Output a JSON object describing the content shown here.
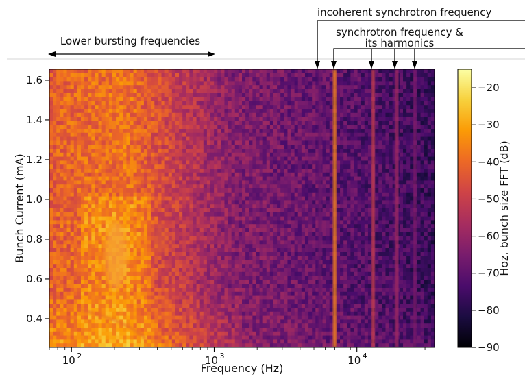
{
  "chart_data": {
    "type": "heatmap",
    "xlabel": "Frequency (Hz)",
    "ylabel": "Bunch Current (mA)",
    "x_scale": "log",
    "xlim": [
      70,
      35000
    ],
    "ylim": [
      0.255,
      1.655
    ],
    "x_ticks": [
      {
        "value": 100,
        "base": "10",
        "exp": "2"
      },
      {
        "value": 1000,
        "base": "10",
        "exp": "3"
      },
      {
        "value": 10000,
        "base": "10",
        "exp": "4"
      }
    ],
    "y_ticks": [
      {
        "value": 0.4,
        "label": "0.4"
      },
      {
        "value": 0.6,
        "label": "0.6"
      },
      {
        "value": 0.8,
        "label": "0.8"
      },
      {
        "value": 1.0,
        "label": "1.0"
      },
      {
        "value": 1.2,
        "label": "1.2"
      },
      {
        "value": 1.4,
        "label": "1.4"
      },
      {
        "value": 1.6,
        "label": "1.6"
      }
    ],
    "colorbar": {
      "label": "Hoz. bunch size FFT (dB)",
      "range": [
        -90,
        -15
      ],
      "ticks": [
        {
          "value": -20,
          "label": "−20"
        },
        {
          "value": -30,
          "label": "−30"
        },
        {
          "value": -40,
          "label": "−40"
        },
        {
          "value": -50,
          "label": "−50"
        },
        {
          "value": -60,
          "label": "−60"
        },
        {
          "value": -70,
          "label": "−70"
        },
        {
          "value": -80,
          "label": "−80"
        },
        {
          "value": -90,
          "label": "−90"
        }
      ]
    },
    "features": [
      {
        "kind": "broad-band",
        "x_range": [
          70,
          1000
        ],
        "peak_db": -30
      },
      {
        "kind": "line",
        "x": 5500,
        "db": -68
      },
      {
        "kind": "line",
        "x": 7000,
        "db": -35
      },
      {
        "kind": "line",
        "x": 13000,
        "db": -50
      },
      {
        "kind": "line",
        "x": 19000,
        "db": -58
      },
      {
        "kind": "line",
        "x": 25500,
        "db": -64
      }
    ],
    "annotations": [
      {
        "text": "Lower bursting frequencies",
        "x_range": [
          70,
          1000
        ]
      },
      {
        "text": "incoherent synchrotron frequency",
        "points_to": [
          5500
        ]
      },
      {
        "text_line1": "synchrotron frequency &",
        "text_line2": "its harmonics",
        "points_to": [
          7000,
          13000,
          19000,
          25500
        ]
      }
    ]
  }
}
